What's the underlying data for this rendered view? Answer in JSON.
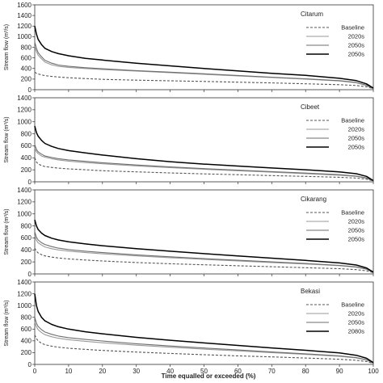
{
  "chart_data": {
    "type": "line",
    "xlabel": "Time equalled or exceeded (%)",
    "x_ticks": [
      0,
      10,
      20,
      30,
      40,
      50,
      60,
      70,
      80,
      90,
      100
    ],
    "xlim": [
      0,
      100
    ],
    "grid": false,
    "legend_position": "top-right",
    "panels": [
      {
        "title": "Citarum",
        "ylabel": "Stream flow (m³/s)",
        "ylim": [
          0,
          1600
        ],
        "y_ticks": [
          0,
          200,
          400,
          600,
          800,
          1000,
          1200,
          1400,
          1600
        ],
        "x": [
          0,
          0.5,
          1,
          2,
          3,
          5,
          7,
          10,
          15,
          20,
          30,
          40,
          50,
          60,
          70,
          80,
          90,
          95,
          98,
          100
        ],
        "series": [
          {
            "name": "Baseline",
            "style": "dashed",
            "color": "#555555",
            "values": [
              330,
              310,
              295,
              280,
              265,
              250,
              240,
              225,
              210,
              195,
              180,
              168,
              155,
              142,
              128,
              112,
              95,
              80,
              55,
              20
            ]
          },
          {
            "name": "2020s",
            "style": "solid",
            "color": "#9a9a9a",
            "values": [
              820,
              720,
              650,
              580,
              520,
              470,
              440,
              420,
              400,
              380,
              350,
              320,
              290,
              260,
              230,
              200,
              165,
              130,
              80,
              20
            ]
          },
          {
            "name": "2050s",
            "style": "solid",
            "color": "#6e6e6e",
            "values": [
              900,
              780,
              700,
              620,
              555,
              500,
              465,
              440,
              415,
              395,
              360,
              330,
              300,
              268,
              236,
              205,
              170,
              135,
              85,
              20
            ]
          },
          {
            "name": "2050s",
            "style": "solid",
            "color": "#000000",
            "values": [
              1200,
              1050,
              950,
              850,
              780,
              720,
              680,
              640,
              590,
              560,
              500,
              450,
              400,
              355,
              310,
              270,
              215,
              170,
              110,
              30
            ]
          }
        ]
      },
      {
        "title": "Cibeet",
        "ylabel": "Stream flow (m³/s)",
        "ylim": [
          0,
          1400
        ],
        "y_ticks": [
          0,
          200,
          400,
          600,
          800,
          1000,
          1200,
          1400
        ],
        "x": [
          0,
          0.5,
          1,
          2,
          3,
          5,
          7,
          10,
          15,
          20,
          30,
          40,
          50,
          60,
          70,
          80,
          90,
          95,
          98,
          100
        ],
        "series": [
          {
            "name": "Baseline",
            "style": "dashed",
            "color": "#555555",
            "values": [
              400,
              330,
              300,
              270,
              255,
              240,
              228,
              215,
              200,
              185,
              165,
              148,
              132,
              118,
              104,
              90,
              75,
              62,
              45,
              15
            ]
          },
          {
            "name": "2020s",
            "style": "solid",
            "color": "#9a9a9a",
            "values": [
              560,
              500,
              470,
              430,
              410,
              385,
              365,
              345,
              320,
              300,
              265,
              235,
              208,
              185,
              160,
              135,
              110,
              90,
              60,
              15
            ]
          },
          {
            "name": "2050s",
            "style": "solid",
            "color": "#6e6e6e",
            "values": [
              620,
              540,
              500,
              460,
              430,
              405,
              385,
              365,
              340,
              318,
              280,
              248,
              220,
              195,
              170,
              145,
              118,
              95,
              65,
              15
            ]
          },
          {
            "name": "2050s",
            "style": "solid",
            "color": "#000000",
            "values": [
              930,
              820,
              760,
              690,
              640,
              590,
              555,
              520,
              480,
              445,
              385,
              335,
              295,
              262,
              230,
              200,
              165,
              135,
              90,
              20
            ]
          }
        ]
      },
      {
        "title": "Cikarang",
        "ylabel": "Stream flow (m³/s)",
        "ylim": [
          0,
          1400
        ],
        "y_ticks": [
          0,
          200,
          400,
          600,
          800,
          1000,
          1200,
          1400
        ],
        "x": [
          0,
          0.5,
          1,
          2,
          3,
          5,
          7,
          10,
          15,
          20,
          30,
          40,
          50,
          60,
          70,
          80,
          90,
          95,
          98,
          100
        ],
        "series": [
          {
            "name": "Baseline",
            "style": "dashed",
            "color": "#555555",
            "values": [
              430,
              380,
              350,
              320,
              300,
              280,
              265,
              250,
              232,
              215,
              190,
              170,
              152,
              136,
              120,
              104,
              88,
              72,
              52,
              20
            ]
          },
          {
            "name": "2020s",
            "style": "solid",
            "color": "#9a9a9a",
            "values": [
              640,
              560,
              520,
              480,
              450,
              420,
              400,
              380,
              355,
              335,
              300,
              270,
              242,
              216,
              190,
              165,
              137,
              112,
              78,
              25
            ]
          },
          {
            "name": "2050s",
            "style": "solid",
            "color": "#6e6e6e",
            "values": [
              700,
              610,
              565,
              520,
              490,
              455,
              430,
              405,
              378,
              355,
              318,
              285,
              255,
              228,
              200,
              173,
              143,
              117,
              82,
              25
            ]
          },
          {
            "name": "2050s",
            "style": "solid",
            "color": "#000000",
            "values": [
              900,
              800,
              740,
              680,
              640,
              595,
              565,
              535,
              500,
              470,
              420,
              378,
              338,
              300,
              262,
              225,
              183,
              148,
              100,
              30
            ]
          }
        ]
      },
      {
        "title": "Bekasi",
        "ylabel": "Stream flow (m³/s)",
        "ylim": [
          0,
          1400
        ],
        "y_ticks": [
          0,
          200,
          400,
          600,
          800,
          1000,
          1200,
          1400
        ],
        "x": [
          0,
          0.5,
          1,
          2,
          3,
          5,
          7,
          10,
          15,
          20,
          30,
          40,
          50,
          60,
          70,
          80,
          90,
          95,
          98,
          100
        ],
        "series": [
          {
            "name": "Baseline",
            "style": "dashed",
            "color": "#555555",
            "values": [
              500,
              440,
              400,
              360,
              335,
              310,
              292,
              275,
              255,
              238,
              210,
              186,
              165,
              146,
              127,
              108,
              88,
              70,
              50,
              15
            ]
          },
          {
            "name": "2020s",
            "style": "solid",
            "color": "#9a9a9a",
            "values": [
              720,
              640,
              590,
              540,
              505,
              470,
              445,
              420,
              392,
              368,
              326,
              292,
              260,
              230,
              200,
              170,
              138,
              110,
              75,
              20
            ]
          },
          {
            "name": "2050s",
            "style": "solid",
            "color": "#6e6e6e",
            "values": [
              800,
              700,
              645,
              590,
              550,
              510,
              482,
              455,
              424,
              398,
              352,
              313,
              278,
              245,
              212,
              180,
              145,
              115,
              78,
              20
            ]
          },
          {
            "name": "2080s",
            "style": "solid",
            "color": "#000000",
            "values": [
              1200,
              1000,
              900,
              800,
              740,
              680,
              640,
              600,
              555,
              520,
              460,
              410,
              365,
              322,
              280,
              240,
              195,
              155,
              105,
              30
            ]
          }
        ]
      }
    ]
  }
}
